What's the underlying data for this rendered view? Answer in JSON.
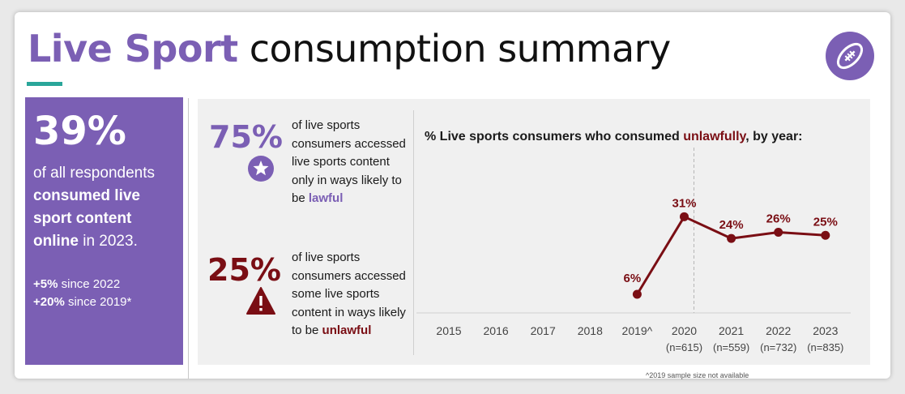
{
  "header": {
    "title_accent": "Live Sport",
    "title_rest": " consumption summary",
    "badge_icon": "rugby-ball-icon"
  },
  "summary": {
    "big_stat": "39%",
    "text_pre": "of all respondents ",
    "text_bold": "consumed live sport content online",
    "text_post": " in 2023.",
    "note1_bold": "+5%",
    "note1_rest": " since 2022",
    "note2_bold": "+20%",
    "note2_rest": " since 2019*"
  },
  "lawful": {
    "pct": "75%",
    "text": "of live sports consumers accessed live sports content only in ways likely to be ",
    "keyword": "lawful",
    "icon": "star-icon"
  },
  "unlawful": {
    "pct": "25%",
    "text": "of live sports consumers accessed some live sports content in ways likely to be ",
    "keyword": "unlawful",
    "icon": "warning-icon"
  },
  "chart_data": {
    "type": "line",
    "title_pre": "% Live sports consumers who consumed ",
    "title_key": "unlawfully",
    "title_post": ", by year:",
    "categories": [
      "2015",
      "2016",
      "2017",
      "2018",
      "2019^",
      "2020",
      "2021",
      "2022",
      "2023"
    ],
    "sample_sizes": [
      "",
      "",
      "",
      "",
      "",
      "(n=615)",
      "(n=559)",
      "(n=732)",
      "(n=835)"
    ],
    "values": [
      null,
      null,
      null,
      null,
      6,
      31,
      24,
      26,
      25
    ],
    "data_labels": [
      "",
      "",
      "",
      "",
      "6%",
      "31%",
      "24%",
      "26%",
      "25%"
    ],
    "ylim": [
      0,
      35
    ],
    "series_color": "#7a0e14",
    "reference_line_at": "2020",
    "footnote": "^2019 sample size not available"
  },
  "colors": {
    "purple": "#7b5fb4",
    "maroon": "#7a0e14",
    "teal": "#2aa69a"
  }
}
